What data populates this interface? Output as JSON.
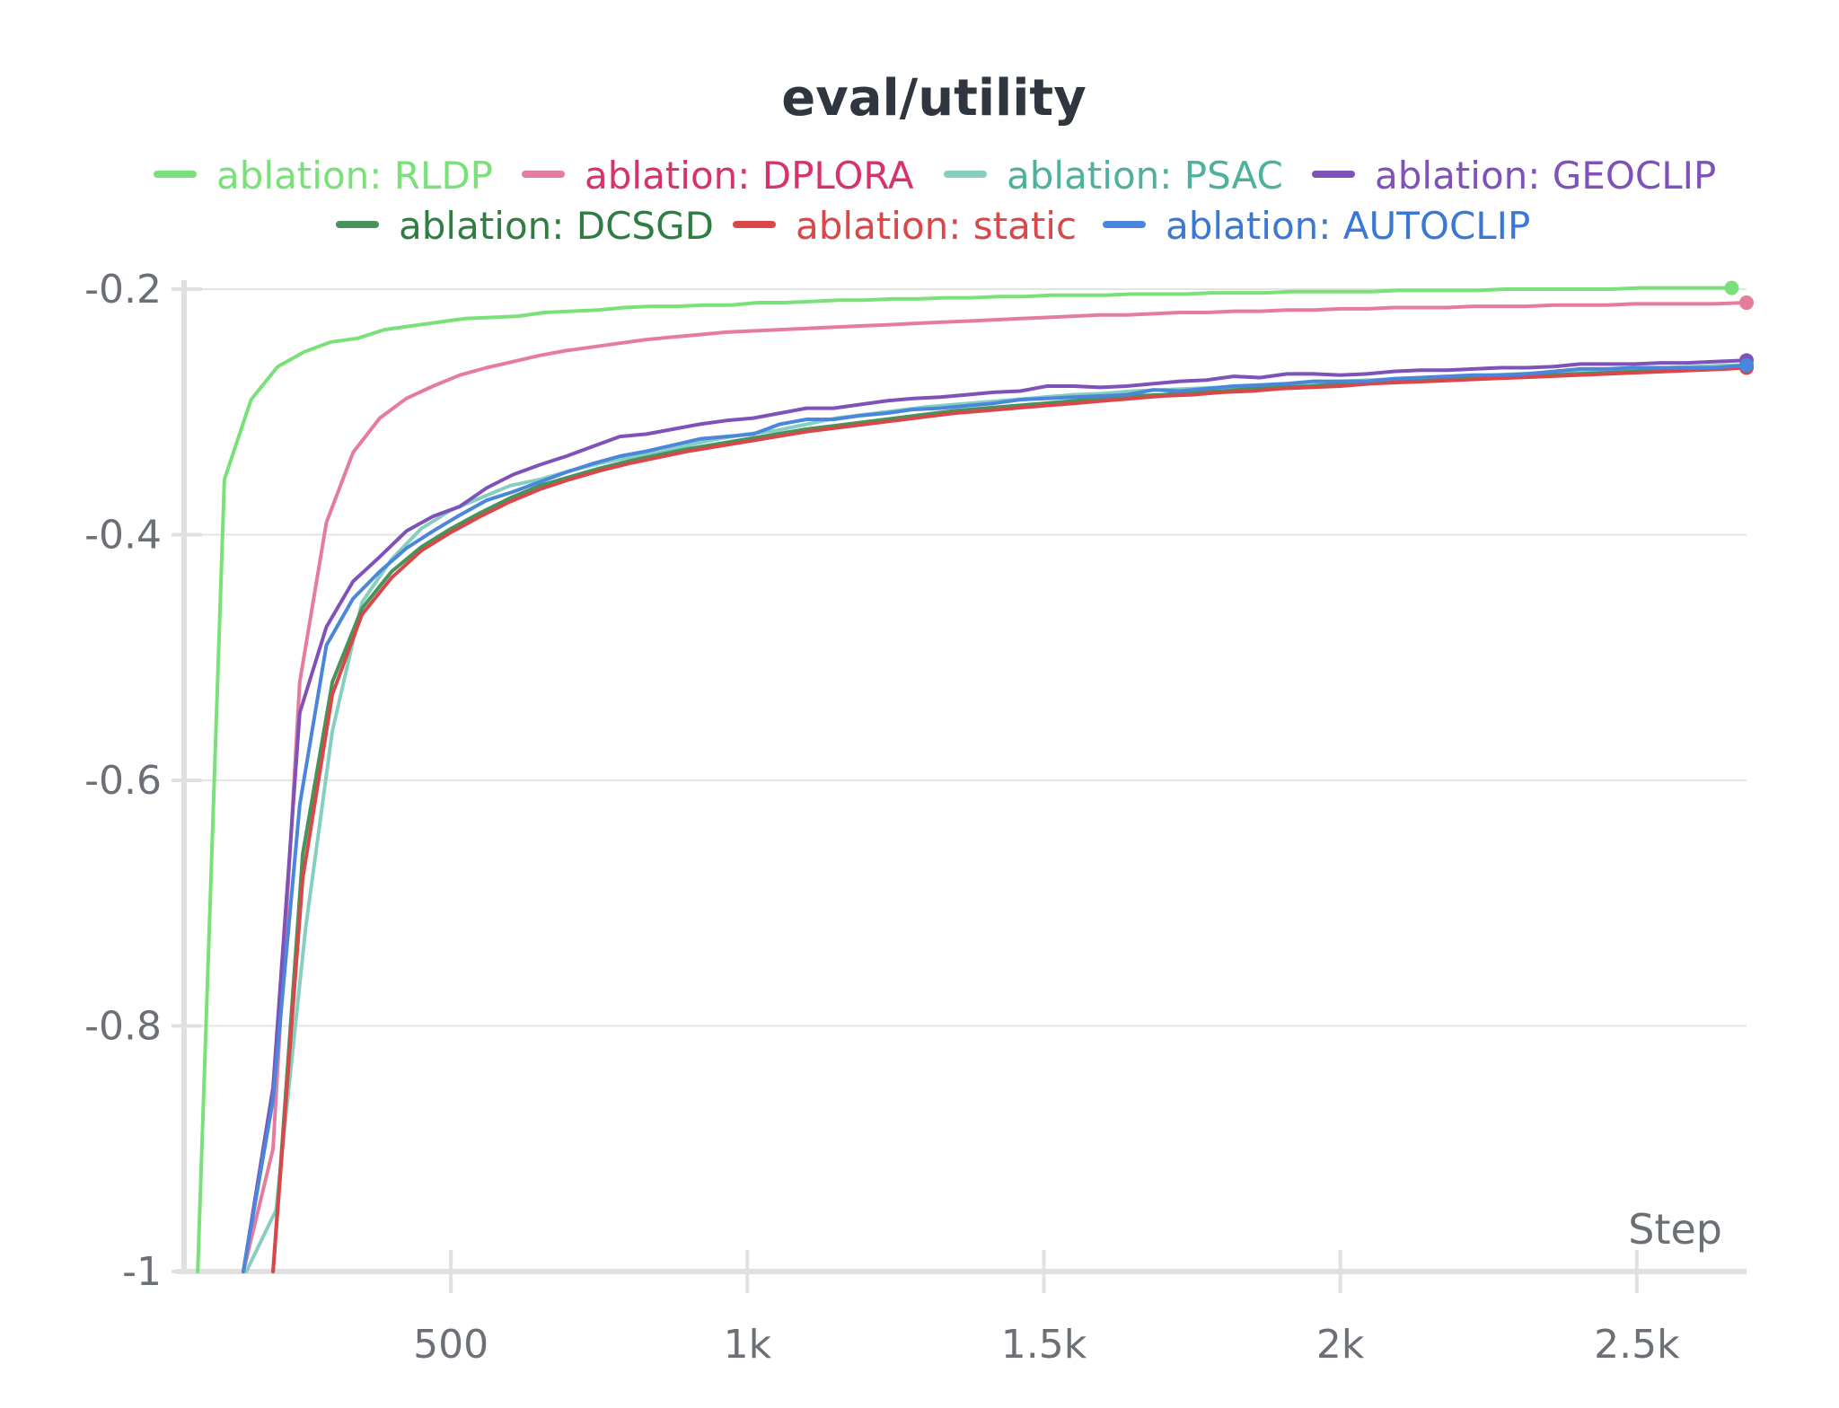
{
  "chart_data": {
    "type": "line",
    "title": "eval/utility",
    "xlabel": "Step",
    "ylabel": "",
    "xlim": [
      50,
      2685
    ],
    "ylim": [
      -1,
      -0.2
    ],
    "x_ticks": [
      {
        "value": 500,
        "label": "500"
      },
      {
        "value": 1000,
        "label": "1k"
      },
      {
        "value": 1500,
        "label": "1.5k"
      },
      {
        "value": 2000,
        "label": "2k"
      },
      {
        "value": 2500,
        "label": "2.5k"
      }
    ],
    "y_ticks": [
      {
        "value": -0.2,
        "label": "-0.2"
      },
      {
        "value": -0.4,
        "label": "-0.4"
      },
      {
        "value": -0.6,
        "label": "-0.6"
      },
      {
        "value": -0.8,
        "label": "-0.8"
      },
      {
        "value": -1,
        "label": "-1"
      }
    ],
    "grid": true,
    "legend_position": "top",
    "series": [
      {
        "name": "ablation: RLDP",
        "color": "#7ae07a",
        "text_color": "#7ae07a",
        "x": [
          73,
          118,
          163,
          208,
          253,
          298,
          343,
          388,
          433,
          478,
          523,
          568,
          613,
          658,
          703,
          748,
          793,
          838,
          883,
          928,
          973,
          1018,
          1063,
          1108,
          1153,
          1198,
          1243,
          1288,
          1333,
          1378,
          1423,
          1468,
          1513,
          1558,
          1603,
          1648,
          1693,
          1738,
          1783,
          1828,
          1873,
          1918,
          1963,
          2008,
          2053,
          2098,
          2143,
          2188,
          2233,
          2278,
          2323,
          2368,
          2413,
          2458,
          2503,
          2548,
          2593,
          2660
        ],
        "y": [
          -1.0,
          -0.355,
          -0.29,
          -0.263,
          -0.251,
          -0.243,
          -0.24,
          -0.233,
          -0.23,
          -0.227,
          -0.224,
          -0.223,
          -0.222,
          -0.219,
          -0.218,
          -0.217,
          -0.215,
          -0.214,
          -0.214,
          -0.213,
          -0.213,
          -0.211,
          -0.211,
          -0.21,
          -0.209,
          -0.209,
          -0.208,
          -0.208,
          -0.207,
          -0.207,
          -0.206,
          -0.206,
          -0.205,
          -0.205,
          -0.205,
          -0.204,
          -0.204,
          -0.204,
          -0.203,
          -0.203,
          -0.203,
          -0.202,
          -0.202,
          -0.202,
          -0.202,
          -0.201,
          -0.201,
          -0.201,
          -0.201,
          -0.2,
          -0.2,
          -0.2,
          -0.2,
          -0.2,
          -0.199,
          -0.199,
          -0.199,
          -0.199
        ]
      },
      {
        "name": "ablation: DPLORA",
        "color": "#e67c9c",
        "text_color": "#d6336c",
        "x": [
          150,
          200,
          245,
          290,
          335,
          380,
          425,
          470,
          515,
          560,
          605,
          650,
          695,
          740,
          785,
          830,
          875,
          920,
          965,
          1010,
          1055,
          1100,
          1145,
          1190,
          1235,
          1280,
          1325,
          1370,
          1415,
          1460,
          1505,
          1550,
          1595,
          1640,
          1685,
          1730,
          1775,
          1820,
          1865,
          1910,
          1955,
          2000,
          2045,
          2090,
          2135,
          2180,
          2225,
          2270,
          2315,
          2360,
          2405,
          2450,
          2495,
          2540,
          2585,
          2630,
          2685
        ],
        "y": [
          -1.0,
          -0.9,
          -0.52,
          -0.39,
          -0.333,
          -0.305,
          -0.289,
          -0.279,
          -0.27,
          -0.264,
          -0.259,
          -0.254,
          -0.25,
          -0.247,
          -0.244,
          -0.241,
          -0.239,
          -0.237,
          -0.235,
          -0.234,
          -0.233,
          -0.232,
          -0.231,
          -0.23,
          -0.229,
          -0.228,
          -0.227,
          -0.226,
          -0.225,
          -0.224,
          -0.223,
          -0.222,
          -0.221,
          -0.221,
          -0.22,
          -0.219,
          -0.219,
          -0.218,
          -0.218,
          -0.217,
          -0.217,
          -0.216,
          -0.216,
          -0.215,
          -0.215,
          -0.215,
          -0.214,
          -0.214,
          -0.214,
          -0.213,
          -0.213,
          -0.213,
          -0.212,
          -0.212,
          -0.212,
          -0.212,
          -0.211
        ]
      },
      {
        "name": "ablation: PSAC",
        "color": "#85cfc0",
        "text_color": "#4fb09e",
        "x": [
          155,
          205,
          255,
          300,
          350,
          400,
          450,
          500,
          550,
          600,
          650,
          700,
          750,
          800,
          850,
          900,
          950,
          1000,
          1050,
          1100,
          1150,
          1200,
          1250,
          1300,
          1350,
          1400,
          1450,
          1500,
          1550,
          1600,
          1650,
          1700,
          1750,
          1800,
          1850,
          1900,
          1950,
          2000,
          2050,
          2100,
          2150,
          2200,
          2250,
          2300,
          2350,
          2400,
          2450,
          2500,
          2550,
          2600,
          2650,
          2685
        ],
        "y": [
          -1.0,
          -0.95,
          -0.72,
          -0.56,
          -0.455,
          -0.42,
          -0.395,
          -0.38,
          -0.37,
          -0.36,
          -0.355,
          -0.348,
          -0.342,
          -0.337,
          -0.333,
          -0.327,
          -0.322,
          -0.318,
          -0.315,
          -0.31,
          -0.305,
          -0.302,
          -0.299,
          -0.296,
          -0.294,
          -0.292,
          -0.29,
          -0.288,
          -0.286,
          -0.285,
          -0.283,
          -0.282,
          -0.281,
          -0.28,
          -0.279,
          -0.278,
          -0.276,
          -0.275,
          -0.274,
          -0.273,
          -0.272,
          -0.271,
          -0.27,
          -0.269,
          -0.268,
          -0.267,
          -0.266,
          -0.265,
          -0.264,
          -0.263,
          -0.262,
          -0.262
        ]
      },
      {
        "name": "ablation: GEOCLIP",
        "color": "#7e52b8",
        "text_color": "#7e52b8",
        "x": [
          150,
          200,
          245,
          290,
          335,
          380,
          425,
          470,
          515,
          560,
          605,
          650,
          695,
          740,
          785,
          830,
          875,
          920,
          965,
          1010,
          1055,
          1100,
          1145,
          1190,
          1235,
          1280,
          1325,
          1370,
          1415,
          1460,
          1505,
          1550,
          1595,
          1640,
          1685,
          1730,
          1775,
          1820,
          1865,
          1910,
          1955,
          2000,
          2045,
          2090,
          2135,
          2180,
          2225,
          2270,
          2315,
          2360,
          2405,
          2450,
          2495,
          2540,
          2585,
          2630,
          2685
        ],
        "y": [
          -1.0,
          -0.85,
          -0.545,
          -0.475,
          -0.438,
          -0.418,
          -0.397,
          -0.385,
          -0.377,
          -0.362,
          -0.351,
          -0.343,
          -0.336,
          -0.328,
          -0.32,
          -0.318,
          -0.314,
          -0.31,
          -0.307,
          -0.305,
          -0.301,
          -0.297,
          -0.297,
          -0.294,
          -0.291,
          -0.289,
          -0.288,
          -0.286,
          -0.284,
          -0.283,
          -0.279,
          -0.279,
          -0.28,
          -0.279,
          -0.277,
          -0.275,
          -0.274,
          -0.271,
          -0.272,
          -0.269,
          -0.269,
          -0.27,
          -0.269,
          -0.267,
          -0.266,
          -0.266,
          -0.265,
          -0.264,
          -0.264,
          -0.263,
          -0.261,
          -0.261,
          -0.261,
          -0.26,
          -0.26,
          -0.259,
          -0.258
        ]
      },
      {
        "name": "ablation: DCSGD",
        "color": "#47945a",
        "text_color": "#2f7d43",
        "x": [
          200,
          250,
          300,
          350,
          400,
          450,
          500,
          550,
          600,
          650,
          700,
          750,
          800,
          850,
          900,
          950,
          1000,
          1050,
          1100,
          1150,
          1200,
          1250,
          1300,
          1350,
          1400,
          1450,
          1500,
          1550,
          1600,
          1650,
          1700,
          1750,
          1800,
          1850,
          1900,
          1950,
          2000,
          2050,
          2100,
          2150,
          2200,
          2250,
          2300,
          2350,
          2400,
          2450,
          2500,
          2550,
          2600,
          2650,
          2685
        ],
        "y": [
          -1.0,
          -0.66,
          -0.52,
          -0.46,
          -0.43,
          -0.41,
          -0.395,
          -0.382,
          -0.37,
          -0.36,
          -0.353,
          -0.346,
          -0.34,
          -0.335,
          -0.33,
          -0.326,
          -0.322,
          -0.318,
          -0.314,
          -0.311,
          -0.308,
          -0.305,
          -0.302,
          -0.299,
          -0.297,
          -0.295,
          -0.293,
          -0.291,
          -0.289,
          -0.287,
          -0.286,
          -0.284,
          -0.283,
          -0.281,
          -0.28,
          -0.279,
          -0.277,
          -0.276,
          -0.275,
          -0.274,
          -0.273,
          -0.272,
          -0.271,
          -0.27,
          -0.269,
          -0.268,
          -0.267,
          -0.266,
          -0.265,
          -0.264,
          -0.263
        ]
      },
      {
        "name": "ablation: static",
        "color": "#d9474a",
        "text_color": "#d9474a",
        "x": [
          200,
          250,
          300,
          350,
          400,
          450,
          500,
          550,
          600,
          650,
          700,
          750,
          800,
          850,
          900,
          950,
          1000,
          1050,
          1100,
          1150,
          1200,
          1250,
          1300,
          1350,
          1400,
          1450,
          1500,
          1550,
          1600,
          1650,
          1700,
          1750,
          1800,
          1850,
          1900,
          1950,
          2000,
          2050,
          2100,
          2150,
          2200,
          2250,
          2300,
          2350,
          2400,
          2450,
          2500,
          2550,
          2600,
          2650,
          2685
        ],
        "y": [
          -1.0,
          -0.68,
          -0.53,
          -0.465,
          -0.435,
          -0.413,
          -0.398,
          -0.385,
          -0.373,
          -0.363,
          -0.355,
          -0.348,
          -0.342,
          -0.337,
          -0.332,
          -0.328,
          -0.324,
          -0.32,
          -0.316,
          -0.313,
          -0.31,
          -0.307,
          -0.304,
          -0.301,
          -0.299,
          -0.297,
          -0.295,
          -0.293,
          -0.291,
          -0.289,
          -0.287,
          -0.286,
          -0.284,
          -0.283,
          -0.281,
          -0.28,
          -0.279,
          -0.277,
          -0.276,
          -0.275,
          -0.274,
          -0.273,
          -0.272,
          -0.271,
          -0.27,
          -0.269,
          -0.268,
          -0.267,
          -0.266,
          -0.265,
          -0.264
        ]
      },
      {
        "name": "ablation: AUTOCLIP",
        "color": "#4a86db",
        "text_color": "#3a78d4",
        "x": [
          150,
          200,
          245,
          290,
          335,
          380,
          425,
          470,
          515,
          560,
          605,
          650,
          695,
          740,
          785,
          830,
          875,
          920,
          965,
          1010,
          1055,
          1100,
          1145,
          1190,
          1235,
          1280,
          1325,
          1370,
          1415,
          1460,
          1505,
          1550,
          1595,
          1640,
          1685,
          1730,
          1775,
          1820,
          1865,
          1910,
          1955,
          2000,
          2045,
          2090,
          2135,
          2180,
          2225,
          2270,
          2315,
          2360,
          2405,
          2450,
          2495,
          2540,
          2585,
          2630,
          2685
        ],
        "y": [
          -1.0,
          -0.86,
          -0.62,
          -0.49,
          -0.452,
          -0.43,
          -0.411,
          -0.397,
          -0.384,
          -0.372,
          -0.365,
          -0.357,
          -0.349,
          -0.342,
          -0.336,
          -0.332,
          -0.327,
          -0.322,
          -0.32,
          -0.318,
          -0.31,
          -0.306,
          -0.306,
          -0.303,
          -0.301,
          -0.298,
          -0.297,
          -0.295,
          -0.293,
          -0.29,
          -0.289,
          -0.288,
          -0.287,
          -0.286,
          -0.282,
          -0.283,
          -0.281,
          -0.279,
          -0.278,
          -0.277,
          -0.275,
          -0.275,
          -0.275,
          -0.273,
          -0.272,
          -0.271,
          -0.27,
          -0.27,
          -0.269,
          -0.267,
          -0.265,
          -0.265,
          -0.264,
          -0.264,
          -0.264,
          -0.264,
          -0.262
        ]
      }
    ]
  }
}
